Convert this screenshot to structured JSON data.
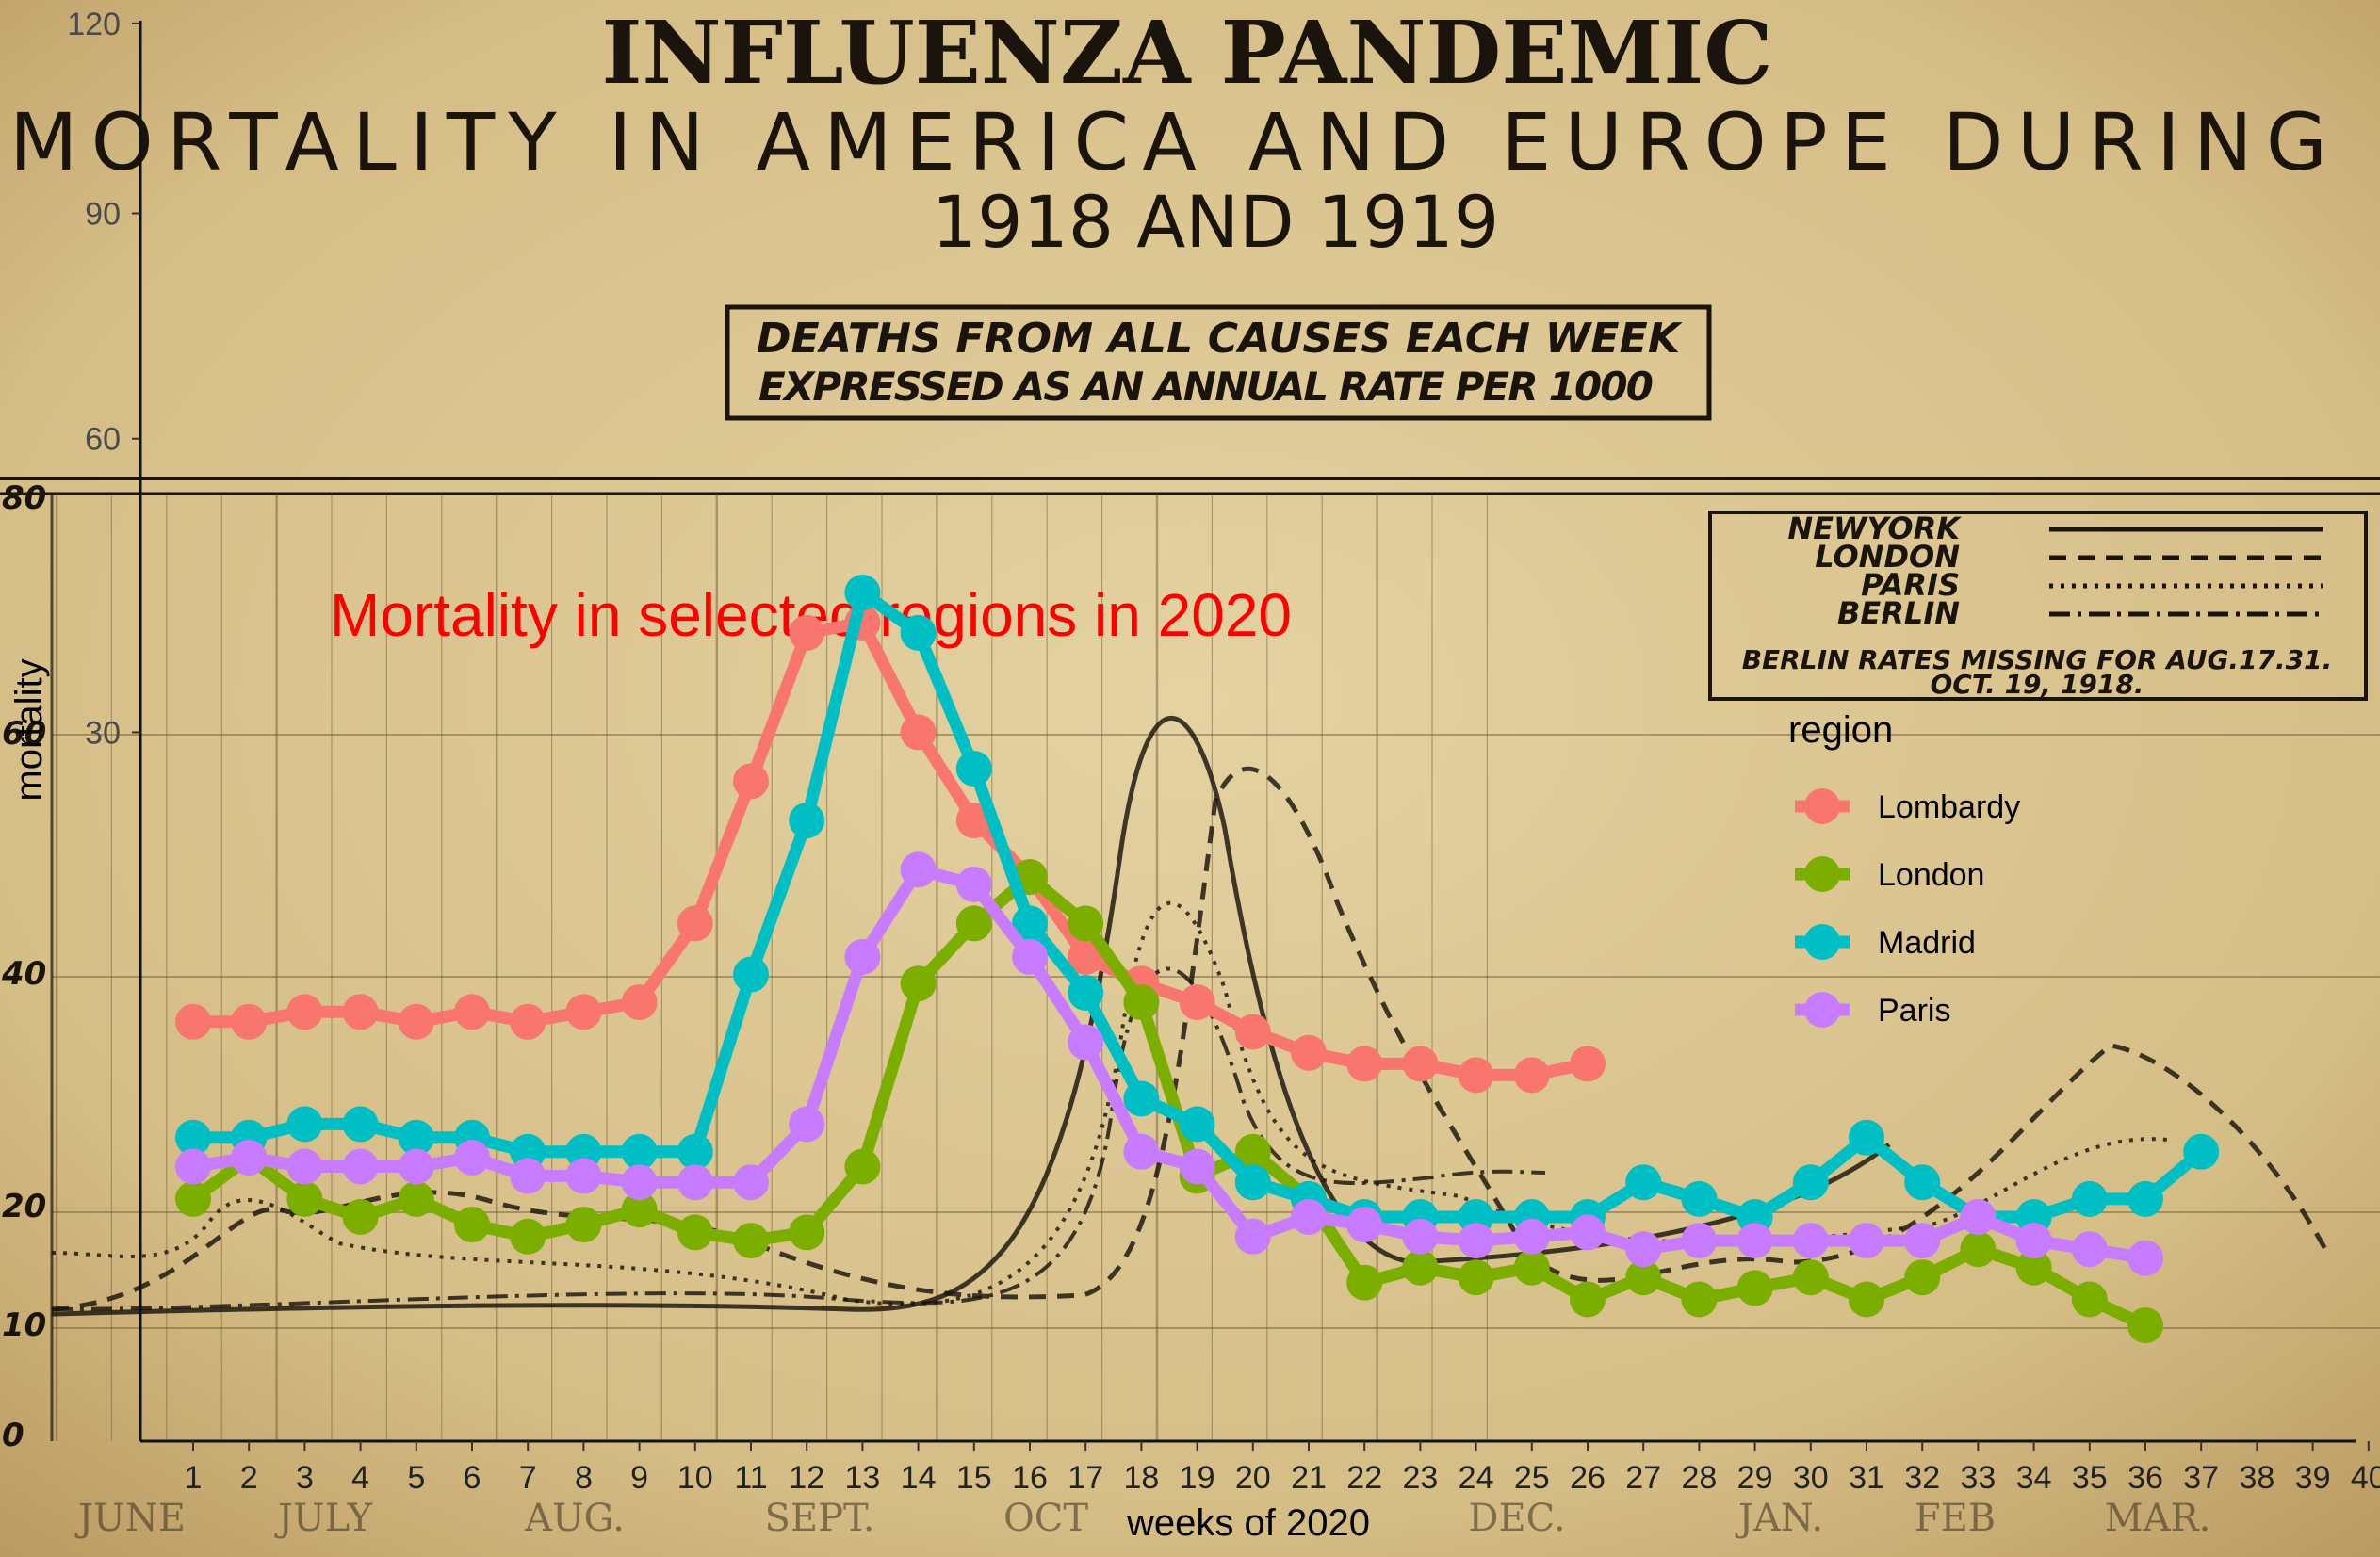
{
  "background": {
    "title_line1": "INFLUENZA      PANDEMIC",
    "title_line2": "MORTALITY IN AMERICA AND EUROPE DURING",
    "title_line3": "1918 AND 1919",
    "box_line1": "DEATHS FROM ALL CAUSES EACH WEEK",
    "box_line2": "EXPRESSED AS AN ANNUAL RATE PER 1000",
    "legend": [
      "NEWYORK",
      "LONDON",
      "PARIS",
      "BERLIN"
    ],
    "legend_note_line1": "BERLIN RATES MISSING FOR AUG.17.31.",
    "legend_note_line2": "OCT. 19, 1918.",
    "months": [
      "JUNE",
      "JULY",
      "AUG.",
      "SEPT.",
      "OCT",
      "DEC.",
      "JAN.",
      "FEB",
      "MAR."
    ],
    "old_y_ticks": [
      "80",
      "60",
      "40",
      "20",
      "10",
      "0"
    ],
    "colors": {
      "paper": "#d8c28f",
      "ink": "#1a140c"
    }
  },
  "chart_data": {
    "type": "line",
    "title": "Mortality in selected regions in 2020",
    "xlabel": "weeks of 2020",
    "ylabel": "mortality",
    "xlim": [
      1,
      40
    ],
    "ylim": [
      0,
      120
    ],
    "y_scale": "sqrt",
    "y_ticks": [
      30,
      60,
      90,
      120
    ],
    "x_ticks": [
      1,
      2,
      3,
      4,
      5,
      6,
      7,
      8,
      9,
      10,
      11,
      12,
      13,
      14,
      15,
      16,
      17,
      18,
      19,
      20,
      21,
      22,
      23,
      24,
      25,
      26,
      27,
      28,
      29,
      30,
      31,
      32,
      33,
      34,
      35,
      36,
      37,
      38,
      39,
      40
    ],
    "legend_title": "region",
    "legend_position": "right",
    "series": [
      {
        "name": "Lombardy",
        "color": "#f8766d",
        "x": [
          1,
          2,
          3,
          4,
          5,
          6,
          7,
          8,
          9,
          10,
          11,
          12,
          13,
          14,
          15,
          16,
          17,
          18,
          19,
          20,
          21,
          22,
          23,
          24,
          25,
          26
        ],
        "values": [
          10.5,
          10.5,
          11,
          11,
          10.5,
          11,
          10.5,
          11,
          11.5,
          16,
          26,
          39,
          40,
          30,
          23,
          19,
          14,
          12.5,
          11.5,
          10,
          9,
          8.5,
          8.5,
          8,
          8,
          8.5
        ]
      },
      {
        "name": "London",
        "color": "#7cae00",
        "x": [
          1,
          2,
          3,
          4,
          5,
          6,
          7,
          8,
          9,
          10,
          11,
          12,
          13,
          14,
          15,
          16,
          17,
          18,
          19,
          20,
          21,
          22,
          23,
          24,
          25,
          26,
          27,
          28,
          29,
          30,
          31,
          32,
          33,
          34,
          35,
          36
        ],
        "values": [
          3.5,
          4.8,
          3.5,
          3,
          3.5,
          2.8,
          2.5,
          2.8,
          3.2,
          2.6,
          2.4,
          2.6,
          4.5,
          12.5,
          16,
          19,
          16,
          11.5,
          4.2,
          5,
          3.5,
          1.5,
          1.8,
          1.6,
          1.8,
          1.2,
          1.6,
          1.2,
          1.4,
          1.6,
          1.2,
          1.6,
          2.2,
          1.8,
          1.2,
          0.8
        ]
      },
      {
        "name": "Madrid",
        "color": "#00bfc4",
        "x": [
          1,
          2,
          3,
          4,
          5,
          6,
          7,
          8,
          9,
          10,
          11,
          12,
          13,
          14,
          15,
          16,
          17,
          18,
          19,
          20,
          21,
          22,
          23,
          24,
          25,
          26,
          27,
          28,
          29,
          30,
          31,
          32,
          33,
          34,
          35,
          36,
          37
        ],
        "values": [
          5.5,
          5.5,
          6,
          6,
          5.5,
          5.5,
          5,
          5,
          5,
          5,
          13,
          23,
          43,
          39,
          27,
          16,
          12,
          7,
          6,
          4,
          3.5,
          3,
          3,
          3,
          3,
          3,
          4,
          3.5,
          3,
          4,
          5.5,
          4,
          3,
          3,
          3.5,
          3.5,
          5
        ]
      },
      {
        "name": "Paris",
        "color": "#c77cff",
        "x": [
          1,
          2,
          3,
          4,
          5,
          6,
          7,
          8,
          9,
          10,
          11,
          12,
          13,
          14,
          15,
          16,
          17,
          18,
          19,
          20,
          21,
          22,
          23,
          24,
          25,
          26,
          27,
          28,
          29,
          30,
          31,
          32,
          33,
          34,
          35,
          36
        ],
        "values": [
          4.5,
          4.8,
          4.5,
          4.5,
          4.5,
          4.8,
          4.2,
          4.2,
          4,
          4,
          4,
          6,
          14,
          19.5,
          18.5,
          14,
          9.5,
          5,
          4.5,
          2.5,
          3,
          2.8,
          2.5,
          2.4,
          2.5,
          2.6,
          2.2,
          2.4,
          2.4,
          2.4,
          2.4,
          2.4,
          3,
          2.4,
          2.2,
          2
        ]
      }
    ]
  }
}
